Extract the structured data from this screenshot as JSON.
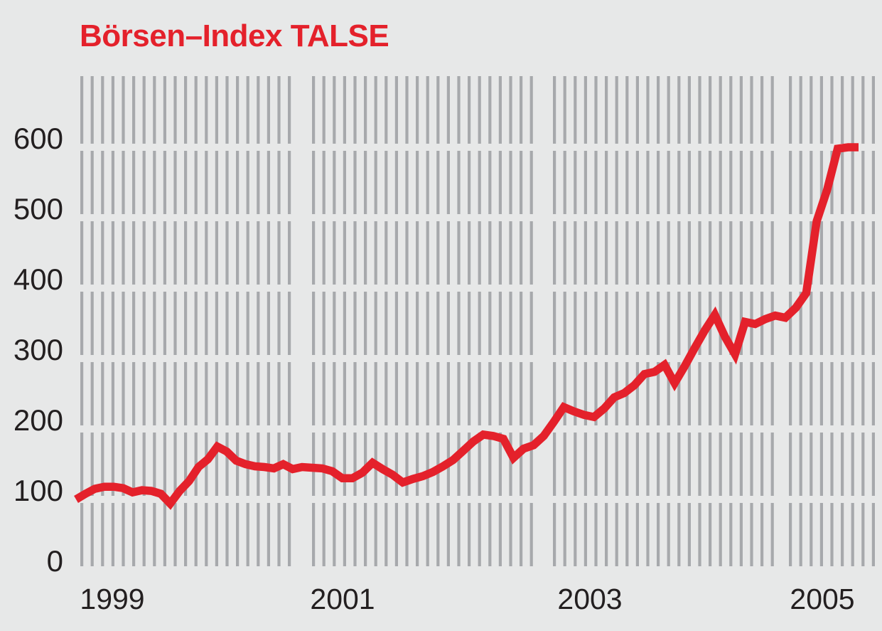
{
  "colors": {
    "background": "#e7e8e8",
    "dash": "#a7a9ac",
    "text": "#231f20",
    "accent": "#e4212b"
  },
  "chart_data": {
    "type": "line",
    "title": "Börsen–Index TALSE",
    "x_tick_labels": [
      "1999",
      "2001",
      "2003",
      "2005"
    ],
    "y_tick_labels": [
      "0",
      "100",
      "200",
      "300",
      "400",
      "500",
      "600"
    ],
    "y_ticks": [
      0,
      100,
      200,
      300,
      400,
      500,
      600
    ],
    "ylim": [
      0,
      700
    ],
    "x_range": {
      "start": "1999-01",
      "end": "2005-08",
      "frequency": "monthly"
    },
    "grid": "texture of vertical gray dashes in horizontal bands; gaps at each 100-unit gridline and at two-year boundaries",
    "legend": "none",
    "series": [
      {
        "name": "TALSE",
        "color": "#e4212b",
        "values": [
          100,
          108,
          115,
          118,
          118,
          116,
          110,
          113,
          112,
          108,
          94,
          112,
          126,
          146,
          157,
          175,
          168,
          155,
          150,
          147,
          146,
          144,
          150,
          143,
          146,
          145,
          144,
          140,
          130,
          130,
          138,
          152,
          143,
          135,
          124,
          129,
          133,
          139,
          147,
          156,
          169,
          182,
          192,
          190,
          186,
          159,
          172,
          177,
          190,
          210,
          231,
          225,
          220,
          217,
          229,
          245,
          251,
          262,
          278,
          281,
          291,
          265,
          289,
          315,
          340,
          362,
          331,
          306,
          352,
          349,
          356,
          361,
          358,
          372,
          393,
          495,
          540,
          598,
          600,
          600
        ]
      }
    ]
  }
}
